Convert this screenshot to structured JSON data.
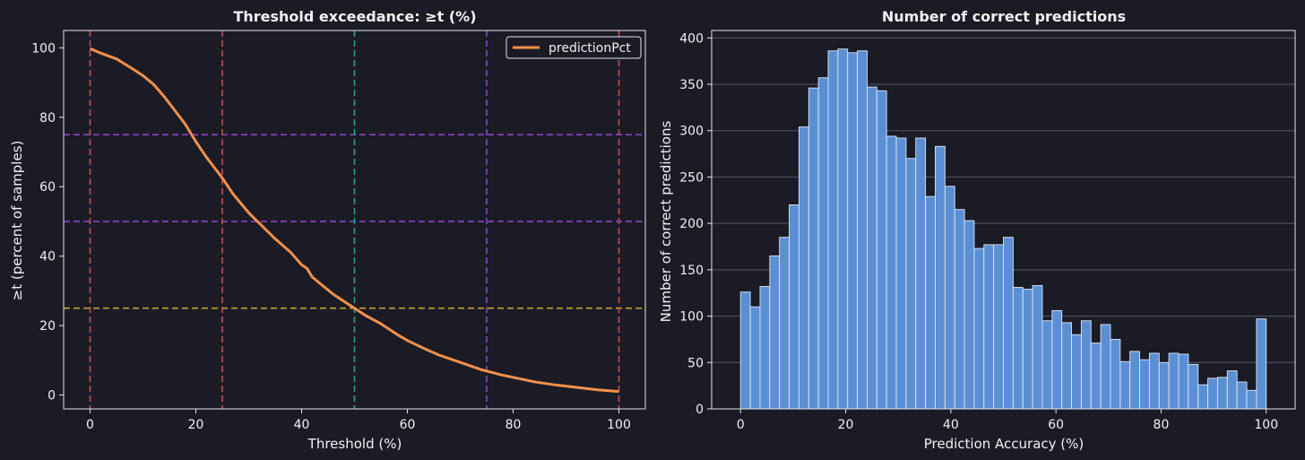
{
  "colors": {
    "background": "#1b1b25",
    "axis": "#e6e6e6",
    "line": "#f4914b",
    "bar_fill": "#5b8fd4",
    "bar_edge": "#dce6f5",
    "vline_red": "#c0504d",
    "vline_green": "#2aa37e",
    "hline_purple": "#8a44c8",
    "hline_gold": "#c8a030",
    "grid": "#55586a"
  },
  "chart_data": [
    {
      "type": "line",
      "title": "Threshold exceedance: ≥t (%)",
      "xlabel": "Threshold (%)",
      "ylabel": "≥t (percent of samples)",
      "xlim": [
        -5,
        105
      ],
      "ylim": [
        -4,
        105
      ],
      "xticks": [
        0,
        20,
        40,
        60,
        80,
        100
      ],
      "yticks": [
        0,
        20,
        40,
        60,
        80,
        100
      ],
      "grid": false,
      "legend": "top-right",
      "series": [
        {
          "name": "predictionPct",
          "x": [
            0,
            2,
            5,
            8,
            10,
            12,
            14,
            16,
            18,
            20,
            22,
            25,
            27,
            30,
            32,
            35,
            38,
            40,
            41,
            42,
            44,
            46,
            48,
            50,
            52,
            55,
            58,
            60,
            63,
            66,
            70,
            74,
            76,
            78,
            80,
            84,
            88,
            92,
            96,
            100
          ],
          "y": [
            99.8,
            98.5,
            96.8,
            94,
            92,
            89.5,
            86,
            82,
            78,
            73,
            68.5,
            62.5,
            58,
            52.5,
            49.5,
            45,
            41,
            37.5,
            36.5,
            34,
            31.5,
            29,
            27,
            25,
            23,
            20.5,
            17.5,
            15.7,
            13.5,
            11.5,
            9.4,
            7.3,
            6.5,
            5.7,
            5.1,
            3.8,
            2.9,
            2.2,
            1.5,
            1.0
          ]
        }
      ],
      "reference_lines": {
        "vertical": [
          {
            "x": 0,
            "color": "vline_red"
          },
          {
            "x": 25,
            "color": "vline_red"
          },
          {
            "x": 50,
            "color": "vline_green"
          },
          {
            "x": 75,
            "color": "hline_purple"
          },
          {
            "x": 100,
            "color": "vline_red"
          }
        ],
        "horizontal": [
          {
            "y": 75,
            "color": "hline_purple"
          },
          {
            "y": 50,
            "color": "hline_purple"
          },
          {
            "y": 25,
            "color": "hline_gold"
          }
        ]
      }
    },
    {
      "type": "bar",
      "title": "Number of correct predictions",
      "xlabel": "Prediction Accuracy (%)",
      "ylabel": "Number of correct predictions",
      "xlim": [
        -5.5,
        105.5
      ],
      "ylim": [
        0,
        408
      ],
      "xticks": [
        0,
        20,
        40,
        60,
        80,
        100
      ],
      "yticks": [
        0,
        50,
        100,
        150,
        200,
        250,
        300,
        350,
        400
      ],
      "grid": true,
      "bin_width": 2,
      "bin_start": 0,
      "values": [
        126,
        110,
        132,
        165,
        185,
        220,
        304,
        346,
        357,
        386,
        388,
        384,
        386,
        347,
        343,
        294,
        292,
        270,
        292,
        229,
        283,
        240,
        215,
        203,
        173,
        177,
        177,
        185,
        131,
        129,
        133,
        95,
        106,
        93,
        80,
        95,
        71,
        91,
        75,
        51,
        62,
        53,
        60,
        50,
        60,
        59,
        48,
        26,
        33,
        34,
        41,
        29,
        20,
        97
      ]
    }
  ]
}
